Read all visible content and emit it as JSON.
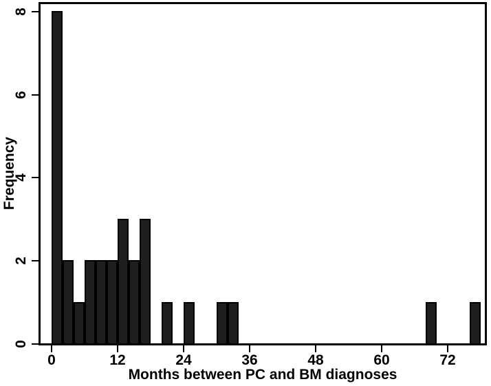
{
  "chart_data": {
    "type": "bar",
    "subtype": "histogram",
    "title": "",
    "xlabel": "Months between PC and BM diagnoses",
    "ylabel": "Frequency",
    "x_ticks": [
      0,
      12,
      24,
      36,
      48,
      60,
      72
    ],
    "y_ticks": [
      0,
      2,
      4,
      6,
      8
    ],
    "xlim": [
      -2.4,
      79
    ],
    "ylim": [
      0,
      8.25
    ],
    "grid": false,
    "legend": "none",
    "bin_width_months": 2,
    "bars": [
      {
        "bin_start": 0,
        "frequency": 8
      },
      {
        "bin_start": 2,
        "frequency": 2
      },
      {
        "bin_start": 4,
        "frequency": 1
      },
      {
        "bin_start": 6,
        "frequency": 2
      },
      {
        "bin_start": 8,
        "frequency": 2
      },
      {
        "bin_start": 10,
        "frequency": 2
      },
      {
        "bin_start": 12,
        "frequency": 3
      },
      {
        "bin_start": 14,
        "frequency": 2
      },
      {
        "bin_start": 16,
        "frequency": 3
      },
      {
        "bin_start": 20,
        "frequency": 1
      },
      {
        "bin_start": 24,
        "frequency": 1
      },
      {
        "bin_start": 30,
        "frequency": 1
      },
      {
        "bin_start": 32,
        "frequency": 1
      },
      {
        "bin_start": 68,
        "frequency": 1
      },
      {
        "bin_start": 76,
        "frequency": 1
      }
    ],
    "colors": {
      "bar_fill": "#1e1e1e",
      "bar_border": "#000000",
      "axis": "#000000",
      "background": "#ffffff",
      "text": "#000000"
    }
  }
}
